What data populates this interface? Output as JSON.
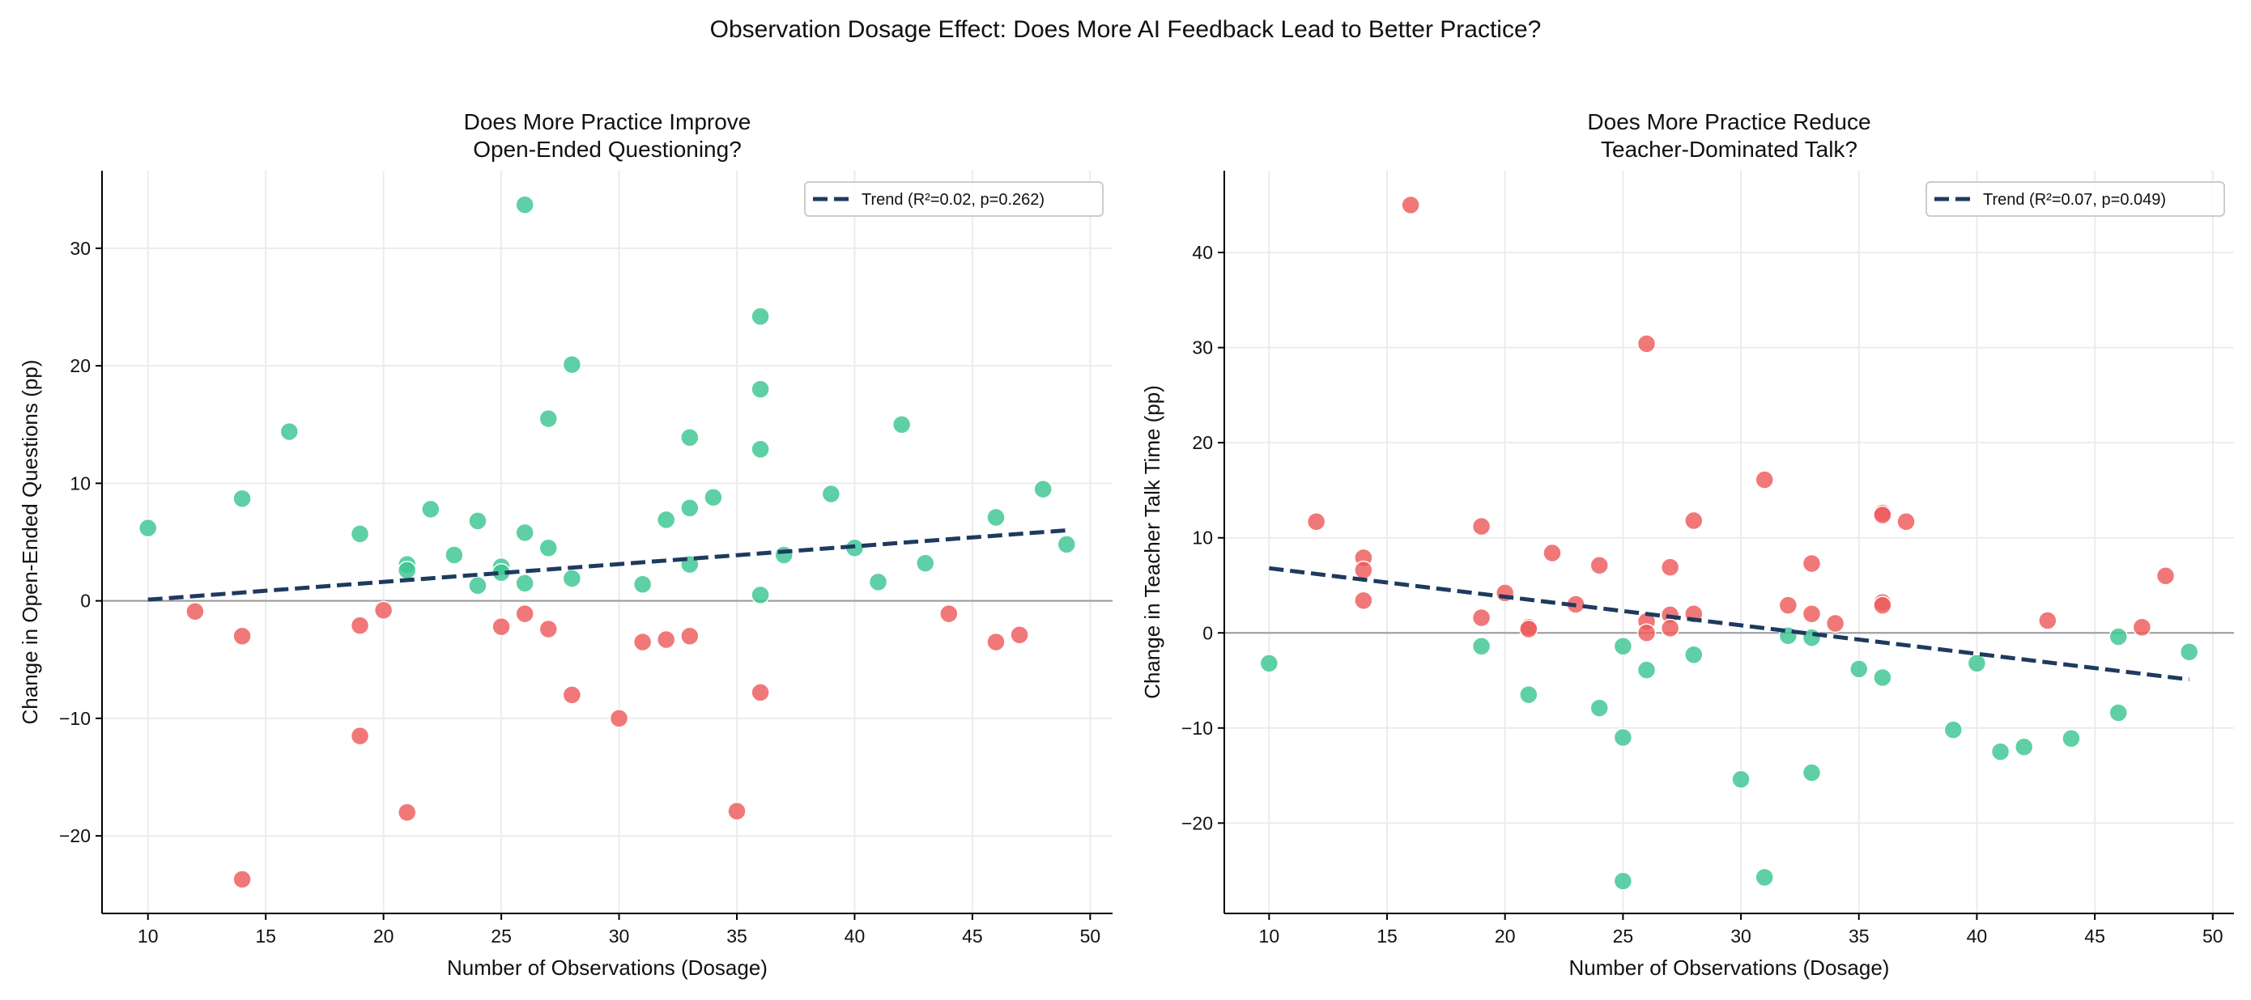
{
  "suptitle": "Observation Dosage Effect: Does More AI Feedback Lead to Better Practice?",
  "colors": {
    "positive": "#3cc493",
    "negative": "#ee5a5a",
    "trend": "#1e3a5f",
    "zero_line": "#999999",
    "grid": "#ebebf0"
  },
  "chart_data": [
    {
      "type": "scatter",
      "title": "Does More Practice Improve\nOpen-Ended Questioning?",
      "xlabel": "Number of Observations (Dosage)",
      "ylabel": "Change in Open-Ended Questions (pp)",
      "xlim": [
        8.05,
        50.95
      ],
      "ylim": [
        -26.6,
        36.6
      ],
      "xticks": [
        10,
        15,
        20,
        25,
        30,
        35,
        40,
        45,
        50
      ],
      "yticks": [
        -20,
        -10,
        0,
        10,
        20,
        30
      ],
      "grid": true,
      "legend": {
        "placement": "top-right",
        "label": "Trend (R²=0.02, p=0.262)"
      },
      "trend": {
        "x": [
          10,
          49
        ],
        "y": [
          0.1,
          6.0
        ]
      },
      "points_improved": [
        [
          10,
          6.2
        ],
        [
          14,
          8.7
        ],
        [
          16,
          14.4
        ],
        [
          19,
          5.7
        ],
        [
          21,
          3.1
        ],
        [
          21,
          2.6
        ],
        [
          22,
          7.8
        ],
        [
          23,
          3.9
        ],
        [
          24,
          6.8
        ],
        [
          24,
          1.3
        ],
        [
          25,
          2.9
        ],
        [
          25,
          2.4
        ],
        [
          26,
          33.7
        ],
        [
          26,
          5.8
        ],
        [
          26,
          1.5
        ],
        [
          27,
          15.5
        ],
        [
          27,
          4.5
        ],
        [
          28,
          20.1
        ],
        [
          28,
          1.9
        ],
        [
          31,
          1.4
        ],
        [
          32,
          6.9
        ],
        [
          33,
          13.9
        ],
        [
          33,
          7.9
        ],
        [
          33,
          3.1
        ],
        [
          34,
          8.8
        ],
        [
          36,
          24.2
        ],
        [
          36,
          18.0
        ],
        [
          36,
          12.9
        ],
        [
          36,
          0.5
        ],
        [
          37,
          3.9
        ],
        [
          39,
          9.1
        ],
        [
          40,
          4.5
        ],
        [
          41,
          1.6
        ],
        [
          42,
          15.0
        ],
        [
          43,
          3.2
        ],
        [
          46,
          7.1
        ],
        [
          48,
          9.5
        ],
        [
          49,
          4.8
        ]
      ],
      "points_worsened": [
        [
          12,
          -0.9
        ],
        [
          14,
          -3.0
        ],
        [
          14,
          -23.7
        ],
        [
          19,
          -2.1
        ],
        [
          19,
          -11.5
        ],
        [
          20,
          -0.8
        ],
        [
          21,
          -18.0
        ],
        [
          25,
          -2.2
        ],
        [
          26,
          -1.1
        ],
        [
          27,
          -2.4
        ],
        [
          28,
          -8.0
        ],
        [
          30,
          -10.0
        ],
        [
          31,
          -3.5
        ],
        [
          32,
          -3.3
        ],
        [
          33,
          -3.0
        ],
        [
          35,
          -17.9
        ],
        [
          36,
          -7.8
        ],
        [
          44,
          -1.1
        ],
        [
          46,
          -3.5
        ],
        [
          47,
          -2.9
        ]
      ]
    },
    {
      "type": "scatter",
      "title": "Does More Practice Reduce\nTeacher-Dominated Talk?",
      "xlabel": "Number of Observations (Dosage)",
      "ylabel": "Change in Teacher Talk Time (pp)",
      "xlim": [
        8.1,
        50.9
      ],
      "ylim": [
        -29.5,
        48.6
      ],
      "xticks": [
        10,
        15,
        20,
        25,
        30,
        35,
        40,
        45,
        50
      ],
      "yticks": [
        -20,
        -10,
        0,
        10,
        20,
        30,
        40
      ],
      "grid": true,
      "legend": {
        "placement": "top-right",
        "label": "Trend (R²=0.07, p=0.049)"
      },
      "trend": {
        "x": [
          10,
          49
        ],
        "y": [
          6.8,
          -4.9
        ]
      },
      "points_improved": [
        [
          10,
          -3.2
        ],
        [
          19,
          -1.4
        ],
        [
          21,
          -6.5
        ],
        [
          24,
          -7.9
        ],
        [
          25,
          -1.4
        ],
        [
          25,
          -11.0
        ],
        [
          25,
          -26.1
        ],
        [
          26,
          -3.9
        ],
        [
          28,
          -2.3
        ],
        [
          30,
          -15.4
        ],
        [
          31,
          -25.7
        ],
        [
          32,
          -0.3
        ],
        [
          33,
          -0.5
        ],
        [
          33,
          -14.7
        ],
        [
          35,
          -3.8
        ],
        [
          36,
          -4.7
        ],
        [
          39,
          -10.2
        ],
        [
          40,
          -3.2
        ],
        [
          41,
          -12.5
        ],
        [
          42,
          -12.0
        ],
        [
          44,
          -11.1
        ],
        [
          46,
          -8.4
        ],
        [
          46,
          -0.4
        ],
        [
          49,
          -2.0
        ]
      ],
      "points_worsened": [
        [
          12,
          11.7
        ],
        [
          14,
          7.9
        ],
        [
          14,
          6.6
        ],
        [
          14,
          3.4
        ],
        [
          16,
          45.0
        ],
        [
          19,
          11.2
        ],
        [
          19,
          1.6
        ],
        [
          20,
          4.2
        ],
        [
          21,
          0.6
        ],
        [
          21,
          0.4
        ],
        [
          22,
          8.4
        ],
        [
          23,
          3.0
        ],
        [
          24,
          7.1
        ],
        [
          26,
          30.4
        ],
        [
          26,
          1.2
        ],
        [
          26,
          0.0
        ],
        [
          27,
          6.9
        ],
        [
          27,
          1.9
        ],
        [
          27,
          0.5
        ],
        [
          28,
          11.8
        ],
        [
          28,
          2.0
        ],
        [
          31,
          16.1
        ],
        [
          32,
          2.9
        ],
        [
          33,
          7.3
        ],
        [
          33,
          2.0
        ],
        [
          34,
          1.0
        ],
        [
          36,
          12.6
        ],
        [
          36,
          12.4
        ],
        [
          36,
          3.2
        ],
        [
          36,
          2.9
        ],
        [
          37,
          11.7
        ],
        [
          43,
          1.3
        ],
        [
          47,
          0.6
        ],
        [
          48,
          6.0
        ]
      ]
    }
  ]
}
